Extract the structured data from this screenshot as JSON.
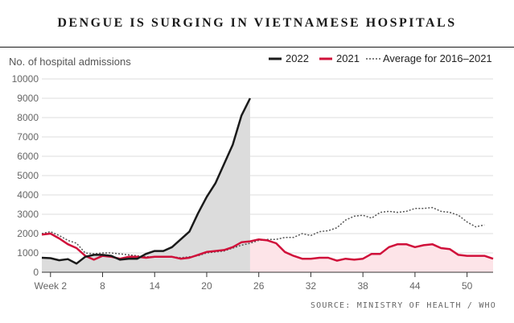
{
  "title": "DENGUE IS SURGING IN VIETNAMESE HOSPITALS",
  "source": "SOURCE: MINISTRY OF HEALTH / WHO",
  "colors": {
    "y2022": "#1a1a1a",
    "y2021": "#d0103a",
    "average": "#555555",
    "shade2022": "#dcdcdc",
    "shade2021": "#fde4e8",
    "grid": "#dddddd"
  },
  "chart_data": {
    "type": "line",
    "title": "DENGUE IS SURGING IN VIETNAMESE HOSPITALS",
    "ylabel": "No. of hospital admissions",
    "xlabel": "",
    "ylim": [
      0,
      10000
    ],
    "xlim": [
      1,
      53
    ],
    "yticks": [
      0,
      1000,
      2000,
      3000,
      4000,
      5000,
      6000,
      7000,
      8000,
      9000,
      10000
    ],
    "xticks": [
      {
        "value": 2,
        "label": "Week 2"
      },
      {
        "value": 8,
        "label": "8"
      },
      {
        "value": 14,
        "label": "14"
      },
      {
        "value": 20,
        "label": "20"
      },
      {
        "value": 26,
        "label": "26"
      },
      {
        "value": 32,
        "label": "32"
      },
      {
        "value": 38,
        "label": "38"
      },
      {
        "value": 44,
        "label": "44"
      },
      {
        "value": 50,
        "label": "50"
      }
    ],
    "legend": [
      {
        "label": "2022",
        "style": "solid-dark"
      },
      {
        "label": "2021",
        "style": "solid-red"
      },
      {
        "label": "Average for 2016–2021",
        "style": "dotted"
      }
    ],
    "series": [
      {
        "name": "2022",
        "x": [
          1,
          2,
          3,
          4,
          5,
          6,
          7,
          8,
          9,
          10,
          11,
          12,
          13,
          14,
          15,
          16,
          17,
          18,
          19,
          20,
          21,
          22,
          23,
          24,
          25
        ],
        "values": [
          750,
          730,
          620,
          680,
          450,
          800,
          900,
          900,
          850,
          650,
          700,
          700,
          950,
          1100,
          1100,
          1300,
          1700,
          2100,
          3050,
          3900,
          4600,
          5600,
          6600,
          8100,
          9000
        ]
      },
      {
        "name": "2021",
        "x": [
          1,
          2,
          3,
          4,
          5,
          6,
          7,
          8,
          9,
          10,
          11,
          12,
          13,
          14,
          15,
          16,
          17,
          18,
          19,
          20,
          21,
          22,
          23,
          24,
          25,
          26,
          27,
          28,
          29,
          30,
          31,
          32,
          33,
          34,
          35,
          36,
          37,
          38,
          39,
          40,
          41,
          42,
          43,
          44,
          45,
          46,
          47,
          48,
          49,
          50,
          51,
          52,
          53
        ],
        "values": [
          1950,
          2000,
          1750,
          1450,
          1250,
          850,
          650,
          850,
          800,
          700,
          800,
          800,
          750,
          800,
          800,
          800,
          700,
          750,
          900,
          1050,
          1100,
          1150,
          1300,
          1550,
          1600,
          1700,
          1650,
          1500,
          1050,
          850,
          700,
          700,
          750,
          750,
          600,
          700,
          650,
          700,
          950,
          950,
          1300,
          1450,
          1450,
          1300,
          1400,
          1450,
          1250,
          1200,
          900,
          850,
          850,
          850,
          700
        ]
      },
      {
        "name": "Average for 2016–2021",
        "x": [
          1,
          2,
          3,
          4,
          5,
          6,
          7,
          8,
          9,
          10,
          11,
          12,
          13,
          14,
          15,
          16,
          17,
          18,
          19,
          20,
          21,
          22,
          23,
          24,
          25,
          26,
          27,
          28,
          29,
          30,
          31,
          32,
          33,
          34,
          35,
          36,
          37,
          38,
          39,
          40,
          41,
          42,
          43,
          44,
          45,
          46,
          47,
          48,
          49,
          50,
          51,
          52
        ],
        "values": [
          2000,
          2100,
          1900,
          1650,
          1500,
          1000,
          950,
          1000,
          1000,
          950,
          900,
          850,
          800,
          800,
          800,
          800,
          750,
          800,
          850,
          1000,
          1050,
          1100,
          1250,
          1400,
          1500,
          1650,
          1700,
          1700,
          1800,
          1800,
          2000,
          1900,
          2100,
          2150,
          2300,
          2700,
          2900,
          2950,
          2800,
          3100,
          3150,
          3100,
          3150,
          3300,
          3300,
          3350,
          3150,
          3100,
          2950,
          2600,
          2350,
          2450
        ]
      }
    ]
  }
}
